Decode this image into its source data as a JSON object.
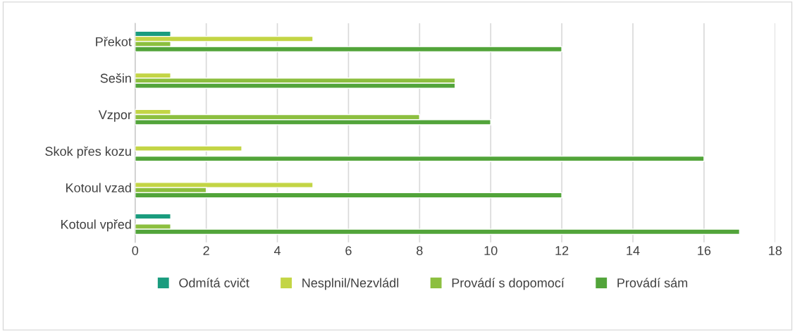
{
  "chart_data": {
    "type": "bar",
    "orientation": "horizontal",
    "categories": [
      "Překot",
      "Sešin",
      "Vzpor",
      "Skok přes kozu",
      "Kotoul vzad",
      "Kotoul vpřed"
    ],
    "series": [
      {
        "name": "Odmítá cvičt",
        "color": "#1a9c7e",
        "values": [
          1,
          null,
          null,
          null,
          null,
          1
        ]
      },
      {
        "name": "Nesplnil/Nezvládl",
        "color": "#c3d545",
        "values": [
          5,
          1,
          1,
          3,
          5,
          null
        ]
      },
      {
        "name": "Provádí s dopomocí",
        "color": "#8cbf3f",
        "values": [
          1,
          9,
          8,
          null,
          2,
          1
        ]
      },
      {
        "name": "Provádí sám",
        "color": "#52a43a",
        "values": [
          12,
          9,
          10,
          16,
          12,
          17
        ]
      }
    ],
    "xlim": [
      0,
      18
    ],
    "xticks": [
      0,
      2,
      4,
      6,
      8,
      10,
      12,
      14,
      16,
      18
    ],
    "grid": "x",
    "legend": "bottom"
  }
}
